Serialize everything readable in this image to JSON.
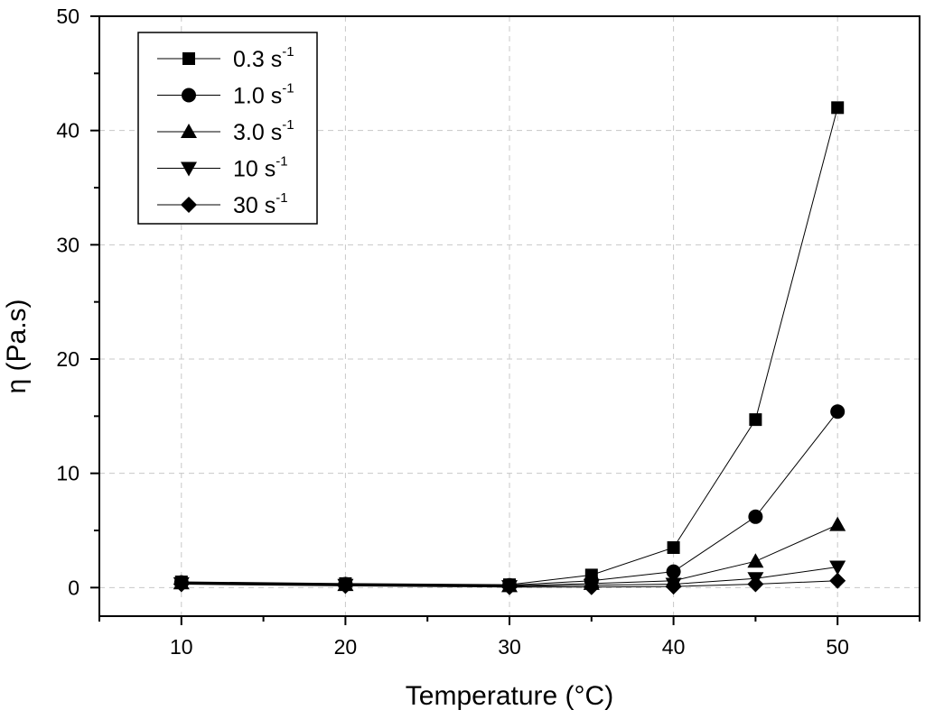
{
  "chart_data": {
    "type": "line",
    "title": "",
    "xlabel": "Temperature (°C)",
    "ylabel": "η (Pa.s)",
    "xlim": [
      5,
      55
    ],
    "ylim": [
      -2.5,
      50
    ],
    "xticks": [
      10,
      20,
      30,
      40,
      50
    ],
    "yticks": [
      0,
      10,
      20,
      30,
      40,
      50
    ],
    "grid": true,
    "legend_position": "top-left",
    "x": [
      10,
      20,
      30,
      35,
      40,
      45,
      50
    ],
    "series": [
      {
        "name": "0.3 s",
        "sup": "-1",
        "marker": "square",
        "values": [
          0.5,
          0.35,
          0.25,
          1.1,
          3.5,
          14.7,
          42.0
        ]
      },
      {
        "name": "1.0 s",
        "sup": "-1",
        "marker": "circle",
        "values": [
          0.45,
          0.3,
          0.2,
          0.6,
          1.4,
          6.2,
          15.4
        ]
      },
      {
        "name": "3.0 s",
        "sup": "-1",
        "marker": "triangle-up",
        "values": [
          0.4,
          0.25,
          0.15,
          0.35,
          0.6,
          2.3,
          5.5
        ]
      },
      {
        "name": "10 s",
        "sup": "-1",
        "marker": "triangle-down",
        "values": [
          0.35,
          0.2,
          0.1,
          0.2,
          0.3,
          0.8,
          1.8
        ]
      },
      {
        "name": "30 s",
        "sup": "-1",
        "marker": "diamond",
        "values": [
          0.3,
          0.15,
          0.05,
          0.05,
          0.1,
          0.3,
          0.6
        ]
      }
    ]
  }
}
